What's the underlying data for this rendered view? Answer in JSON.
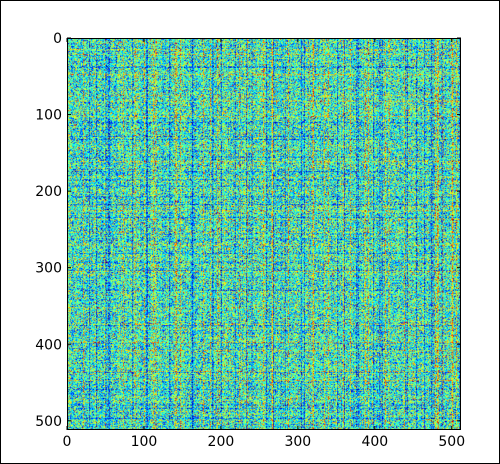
{
  "chart_data": {
    "type": "heatmap",
    "title": "",
    "xlabel": "",
    "ylabel": "",
    "rows": 512,
    "cols": 512,
    "xlim": [
      0,
      512
    ],
    "ylim": [
      512,
      0
    ],
    "x_ticks": [
      0,
      100,
      200,
      300,
      400,
      500
    ],
    "y_ticks": [
      0,
      100,
      200,
      300,
      400,
      500
    ],
    "x_tick_labels": [
      "0",
      "100",
      "200",
      "300",
      "400",
      "500"
    ],
    "y_tick_labels": [
      "0",
      "100",
      "200",
      "300",
      "400",
      "500"
    ],
    "colormap": "jet",
    "colormap_stops": [
      "#00007f",
      "#0000ff",
      "#007fff",
      "#00ffff",
      "#7fff7f",
      "#ffff00",
      "#ff7f00",
      "#ff0000",
      "#7f0000"
    ],
    "value_range": [
      0,
      1
    ],
    "grid": false,
    "legend": "none"
  }
}
